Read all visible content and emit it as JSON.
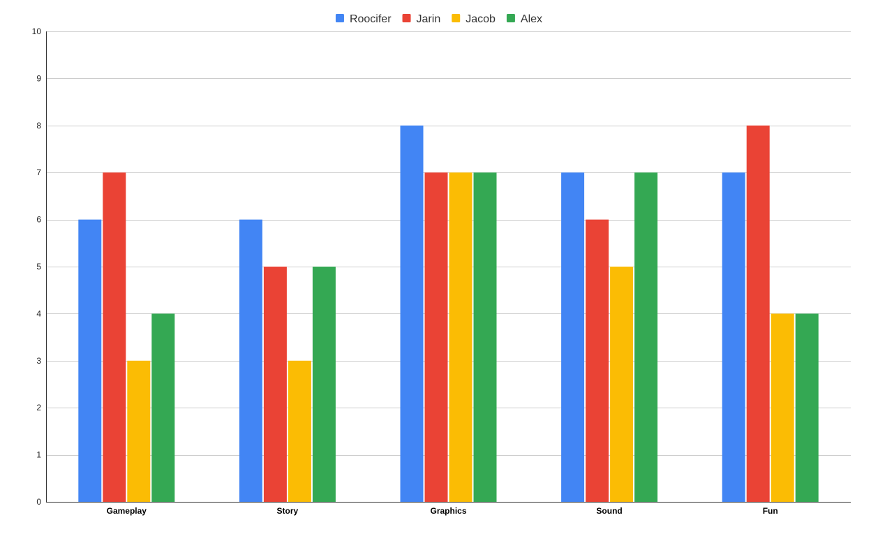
{
  "chart_data": {
    "type": "bar",
    "categories": [
      "Gameplay",
      "Story",
      "Graphics",
      "Sound",
      "Fun"
    ],
    "series": [
      {
        "name": "Roocifer",
        "color": "#4285F4",
        "values": [
          6,
          6,
          8,
          7,
          7
        ]
      },
      {
        "name": "Jarin",
        "color": "#EA4335",
        "values": [
          7,
          5,
          7,
          6,
          8
        ]
      },
      {
        "name": "Jacob",
        "color": "#FBBC04",
        "values": [
          3,
          3,
          7,
          5,
          4
        ]
      },
      {
        "name": "Alex",
        "color": "#34A853",
        "values": [
          4,
          5,
          7,
          7,
          4
        ]
      }
    ],
    "ylim": [
      0,
      10
    ],
    "yticks": [
      0,
      1,
      2,
      3,
      4,
      5,
      6,
      7,
      8,
      9,
      10
    ],
    "grid": true,
    "legend": "top-center",
    "title": "",
    "xlabel": "",
    "ylabel": ""
  }
}
